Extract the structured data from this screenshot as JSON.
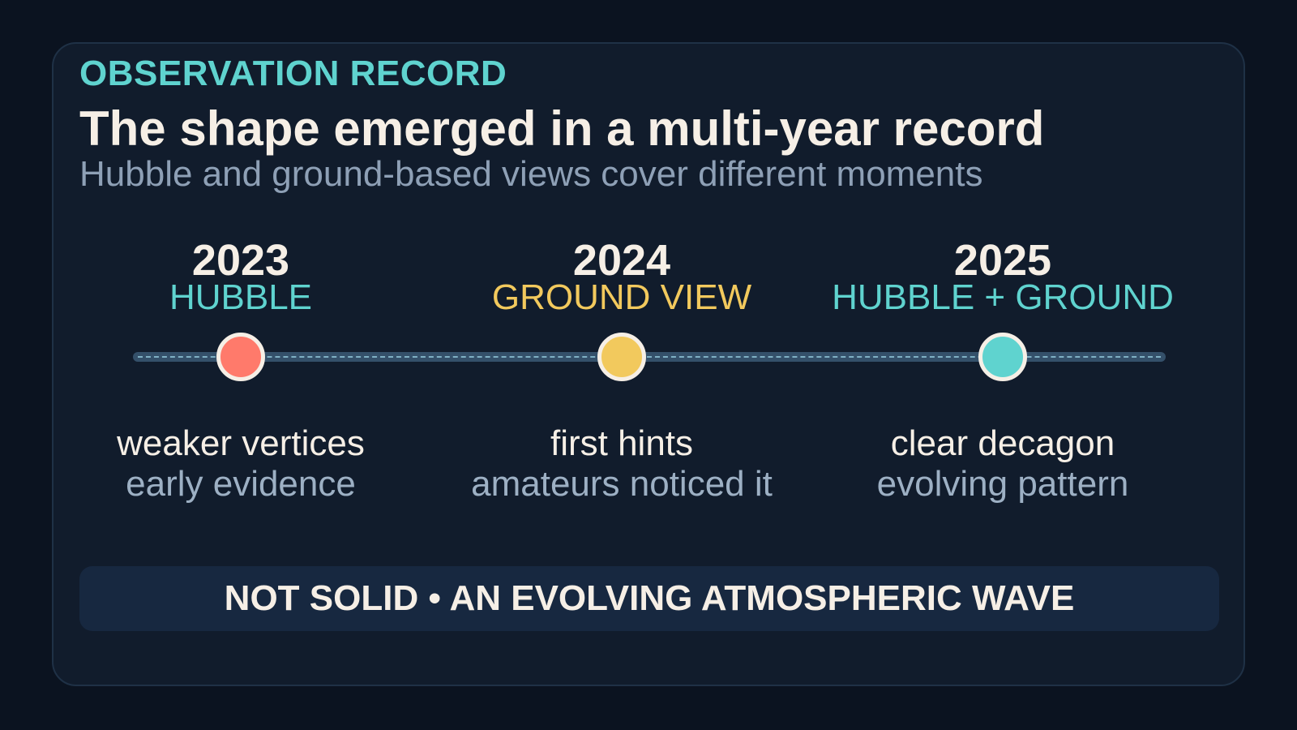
{
  "header": {
    "eyebrow": "OBSERVATION RECORD",
    "title": "The shape emerged in a multi-year record",
    "subtitle": "Hubble and ground-based views cover different moments"
  },
  "timeline": {
    "milestones": [
      {
        "year": "2023",
        "source": "HUBBLE",
        "source_color": "#5fd3cf",
        "dot_color": "#ff7a6b",
        "note": "weaker vertices",
        "sub": "early evidence"
      },
      {
        "year": "2024",
        "source": "GROUND VIEW",
        "source_color": "#f2c95d",
        "dot_color": "#f2c95d",
        "note": "first hints",
        "sub": "amateurs noticed it"
      },
      {
        "year": "2025",
        "source": "HUBBLE + GROUND",
        "source_color": "#5fd3cf",
        "dot_color": "#5fd3cf",
        "note": "clear decagon",
        "sub": "evolving pattern"
      }
    ]
  },
  "banner": {
    "text": "NOT SOLID • AN EVOLVING ATMOSPHERIC WAVE"
  },
  "colors": {
    "background": "#0b1320",
    "card": "#111c2c",
    "accent_teal": "#5fd3cf",
    "accent_gold": "#f2c95d",
    "accent_coral": "#ff7a6b"
  }
}
